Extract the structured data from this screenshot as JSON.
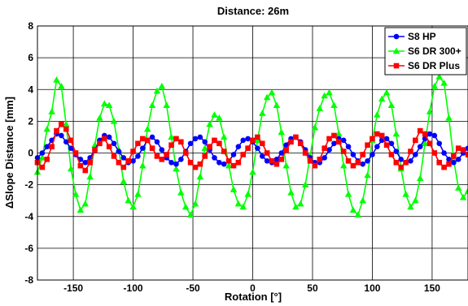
{
  "chart_data": {
    "type": "line",
    "title": "Distance: 26m",
    "xlabel": "Rotation [°]",
    "ylabel": "ΔSlope Distance [mm]",
    "xlim": [
      -180,
      180
    ],
    "ylim": [
      -8,
      8
    ],
    "xticks": [
      -150,
      -100,
      -50,
      0,
      50,
      100,
      150
    ],
    "yticks": [
      -8,
      -6,
      -4,
      -2,
      0,
      2,
      4,
      6,
      8
    ],
    "grid": true,
    "legend_position": "top-right",
    "series": [
      {
        "name": "S8 HP",
        "color": "#0000ff",
        "marker": "circle",
        "x": [
          -180,
          -176,
          -172,
          -168,
          -164,
          -160,
          -156,
          -152,
          -148,
          -144,
          -140,
          -136,
          -132,
          -128,
          -124,
          -120,
          -116,
          -112,
          -108,
          -104,
          -100,
          -96,
          -92,
          -88,
          -84,
          -80,
          -76,
          -72,
          -68,
          -64,
          -60,
          -56,
          -52,
          -48,
          -44,
          -40,
          -36,
          -32,
          -28,
          -24,
          -20,
          -16,
          -12,
          -8,
          -4,
          0,
          4,
          8,
          12,
          16,
          20,
          24,
          28,
          32,
          36,
          40,
          44,
          48,
          52,
          56,
          60,
          64,
          68,
          72,
          76,
          80,
          84,
          88,
          92,
          96,
          100,
          104,
          108,
          112,
          116,
          120,
          124,
          128,
          132,
          136,
          140,
          144,
          148,
          152,
          156,
          160,
          164,
          168,
          172,
          176,
          180
        ],
        "y": [
          -0.3,
          0.0,
          0.4,
          0.8,
          1.2,
          1.1,
          0.7,
          0.3,
          -0.1,
          -0.4,
          -0.6,
          -0.3,
          0.2,
          0.8,
          1.1,
          1.0,
          0.6,
          0.1,
          -0.3,
          -0.6,
          -0.5,
          -0.2,
          0.3,
          0.8,
          1.0,
          0.7,
          0.2,
          -0.3,
          -0.6,
          -0.7,
          -0.4,
          0.1,
          0.6,
          0.9,
          1.0,
          0.7,
          0.2,
          -0.3,
          -0.6,
          -0.7,
          -0.5,
          -0.1,
          0.4,
          0.8,
          0.9,
          0.7,
          0.3,
          -0.2,
          -0.5,
          -0.6,
          -0.4,
          0.0,
          0.5,
          0.9,
          1.0,
          0.7,
          0.2,
          -0.3,
          -0.6,
          -0.6,
          -0.3,
          0.2,
          0.6,
          0.9,
          0.8,
          0.4,
          -0.1,
          -0.5,
          -0.7,
          -0.5,
          -0.1,
          0.4,
          0.8,
          0.9,
          0.6,
          0.1,
          -0.4,
          -0.6,
          -0.5,
          -0.1,
          0.4,
          0.9,
          1.2,
          1.1,
          0.6,
          0.0,
          -0.4,
          -0.6,
          -0.4,
          0.0,
          0.3
        ]
      },
      {
        "name": "S6 DR 300+",
        "color": "#00ff00",
        "marker": "triangle",
        "x": [
          -180,
          -176,
          -172,
          -168,
          -164,
          -160,
          -156,
          -152,
          -148,
          -144,
          -140,
          -136,
          -132,
          -128,
          -124,
          -120,
          -116,
          -112,
          -108,
          -104,
          -100,
          -96,
          -92,
          -88,
          -84,
          -80,
          -76,
          -72,
          -68,
          -64,
          -60,
          -56,
          -52,
          -48,
          -44,
          -40,
          -36,
          -32,
          -28,
          -24,
          -20,
          -16,
          -12,
          -8,
          -4,
          0,
          4,
          8,
          12,
          16,
          20,
          24,
          28,
          32,
          36,
          40,
          44,
          48,
          52,
          56,
          60,
          64,
          68,
          72,
          76,
          80,
          84,
          88,
          92,
          96,
          100,
          104,
          108,
          112,
          116,
          120,
          124,
          128,
          132,
          136,
          140,
          144,
          148,
          152,
          156,
          160,
          164,
          168,
          172,
          176,
          180
        ],
        "y": [
          -1.2,
          -0.3,
          1.5,
          2.6,
          4.6,
          4.2,
          1.8,
          -1.0,
          -2.6,
          -3.6,
          -3.2,
          -1.5,
          0.5,
          2.2,
          3.1,
          3.0,
          2.0,
          0.2,
          -1.8,
          -3.0,
          -3.4,
          -2.6,
          -0.8,
          1.5,
          3.0,
          3.9,
          4.2,
          3.0,
          1.0,
          -1.0,
          -2.5,
          -3.4,
          -3.9,
          -3.2,
          -1.5,
          0.3,
          1.8,
          2.4,
          2.2,
          1.0,
          -0.8,
          -2.3,
          -3.2,
          -3.4,
          -2.6,
          -1.2,
          0.8,
          2.5,
          3.5,
          3.8,
          3.0,
          1.3,
          -0.8,
          -2.5,
          -3.4,
          -3.2,
          -2.0,
          -0.2,
          1.6,
          2.8,
          3.6,
          3.8,
          3.0,
          1.2,
          -0.8,
          -2.6,
          -3.6,
          -3.9,
          -3.0,
          -1.4,
          0.8,
          2.4,
          3.4,
          3.8,
          3.0,
          1.2,
          -1.0,
          -2.6,
          -3.4,
          -3.0,
          -1.6,
          0.6,
          2.6,
          4.2,
          4.8,
          4.4,
          2.2,
          -0.4,
          -2.2,
          -2.8,
          -2.4
        ]
      },
      {
        "name": "S6 DR Plus",
        "color": "#ff0000",
        "marker": "square",
        "x": [
          -180,
          -176,
          -172,
          -168,
          -164,
          -160,
          -156,
          -152,
          -148,
          -144,
          -140,
          -136,
          -132,
          -128,
          -124,
          -120,
          -116,
          -112,
          -108,
          -104,
          -100,
          -96,
          -92,
          -88,
          -84,
          -80,
          -76,
          -72,
          -68,
          -64,
          -60,
          -56,
          -52,
          -48,
          -44,
          -40,
          -36,
          -32,
          -28,
          -24,
          -20,
          -16,
          -12,
          -8,
          -4,
          0,
          4,
          8,
          12,
          16,
          20,
          24,
          28,
          32,
          36,
          40,
          44,
          48,
          52,
          56,
          60,
          64,
          68,
          72,
          76,
          80,
          84,
          88,
          92,
          96,
          100,
          104,
          108,
          112,
          116,
          120,
          124,
          128,
          132,
          136,
          140,
          144,
          148,
          152,
          156,
          160,
          164,
          168,
          172,
          176,
          180
        ],
        "y": [
          -0.6,
          -0.9,
          -0.4,
          0.4,
          1.4,
          1.8,
          1.5,
          0.8,
          0.0,
          -0.8,
          -1.1,
          -0.6,
          0.2,
          0.6,
          0.9,
          0.4,
          -0.2,
          -0.6,
          -0.9,
          -0.5,
          0.1,
          0.6,
          0.9,
          0.8,
          0.3,
          -0.2,
          -0.4,
          -0.1,
          0.5,
          0.9,
          0.7,
          0.0,
          -0.6,
          -0.9,
          -0.7,
          -0.2,
          0.4,
          0.8,
          0.6,
          0.1,
          -0.5,
          -0.8,
          -0.6,
          -0.1,
          0.3,
          0.8,
          1.0,
          0.6,
          0.0,
          -0.5,
          -0.7,
          -0.4,
          0.2,
          0.7,
          1.0,
          0.6,
          0.0,
          -0.5,
          -0.8,
          -0.4,
          0.3,
          0.9,
          1.1,
          0.7,
          0.1,
          -0.5,
          -0.8,
          -0.6,
          -0.1,
          0.5,
          0.9,
          1.2,
          1.1,
          0.5,
          -0.1,
          -0.6,
          -0.9,
          -0.6,
          0.1,
          0.8,
          1.4,
          1.2,
          0.6,
          0.0,
          -0.6,
          -0.9,
          -0.7,
          -0.2,
          0.3,
          0.2,
          -0.1
        ]
      }
    ]
  }
}
